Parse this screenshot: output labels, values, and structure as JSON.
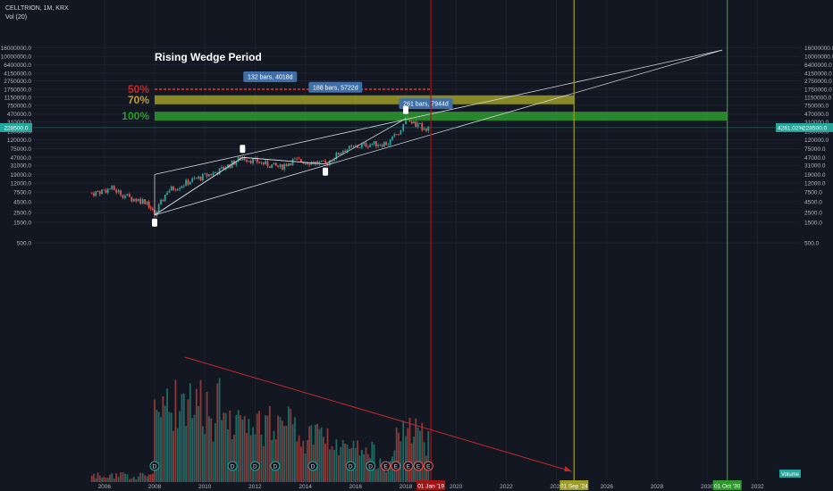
{
  "header": {
    "symbol_line": "CELLTRION, 1M, KRX",
    "vol_line": "Vol (20)"
  },
  "annotations": {
    "pattern_title": "Rising Wedge Period",
    "level_50": "50%",
    "level_70": "70%",
    "level_100": "100%",
    "measure_50": "132 bars, 4018d",
    "measure_70": "188 bars, 5722d",
    "measure_100": "261 bars, 7944d",
    "marker_2019": "01 Jan '19",
    "marker_2024": "01 Sep '24",
    "marker_2030": "01 Oct '30",
    "last_price": "228500.0",
    "change_pct": "4281.02%",
    "volume_label": "Volume",
    "dividend_letter": "D",
    "earnings_letter": "E"
  },
  "colors": {
    "background": "#131722",
    "up": "#26a69a",
    "down": "#ef5350",
    "up_volume": "#1f6b64",
    "down_volume": "#8c3a39",
    "level_50": "#c62828",
    "level_70": "#9e9d24",
    "level_100": "#2e9a2e",
    "marker_2019": "#a31515",
    "marker_2024": "#9e9d24",
    "marker_2030": "#2e9a2e",
    "measure_box": "#3f6fa8",
    "price_tag": "#26a69a"
  },
  "chart_data": {
    "type": "candlestick",
    "title": "CELLTRION, 1M, KRX",
    "price_scale": "log",
    "y_ticks": [
      "16000000.0",
      "10000000.0",
      "6400000.0",
      "4150000.0",
      "2750000.0",
      "1750000.0",
      "1150000.0",
      "750000.0",
      "470000.0",
      "310000.0",
      "190000.0",
      "120000.0",
      "75000.0",
      "47000.0",
      "31000.0",
      "19000.0",
      "12000.0",
      "7500.0",
      "4500.0",
      "2500.0",
      "1500.0",
      "500.0"
    ],
    "x_ticks": [
      "2006",
      "2008",
      "2010",
      "2012",
      "2014",
      "2016",
      "2018",
      "2020",
      "2022",
      "2024",
      "2026",
      "2028",
      "2030",
      "2032"
    ],
    "last_price": 228500,
    "change_pct": 4281.02,
    "price_path": [
      {
        "x": 2005.5,
        "close": 7000
      },
      {
        "x": 2006.3,
        "close": 9000
      },
      {
        "x": 2007.0,
        "close": 5500
      },
      {
        "x": 2007.7,
        "close": 4500
      },
      {
        "x": 2008.0,
        "close": 2200
      },
      {
        "x": 2008.5,
        "close": 8000
      },
      {
        "x": 2009.5,
        "close": 14000
      },
      {
        "x": 2010.5,
        "close": 22000
      },
      {
        "x": 2011.5,
        "close": 47000
      },
      {
        "x": 2012.5,
        "close": 32000
      },
      {
        "x": 2013.0,
        "close": 28000
      },
      {
        "x": 2013.5,
        "close": 40000
      },
      {
        "x": 2014.0,
        "close": 38000
      },
      {
        "x": 2014.8,
        "close": 33000
      },
      {
        "x": 2015.5,
        "close": 70000
      },
      {
        "x": 2016.5,
        "close": 95000
      },
      {
        "x": 2017.3,
        "close": 100000
      },
      {
        "x": 2017.8,
        "close": 200000
      },
      {
        "x": 2018.0,
        "close": 370000
      },
      {
        "x": 2018.4,
        "close": 260000
      },
      {
        "x": 2018.9,
        "close": 228500
      }
    ],
    "volume_peak_year": 2009.2,
    "levels": [
      {
        "label": "50%",
        "price": 1750000,
        "x_start": 2008,
        "x_end": 2019
      },
      {
        "label": "70%",
        "price": 1000000,
        "x_start": 2008,
        "x_end": 2024.7
      },
      {
        "label": "100%",
        "price": 420000,
        "x_start": 2008,
        "x_end": 2030.8
      }
    ],
    "vertical_markers": [
      {
        "label": "01 Jan '19",
        "x": 2019.0
      },
      {
        "label": "01 Sep '24",
        "x": 2024.7
      },
      {
        "label": "01 Oct '30",
        "x": 2030.8
      }
    ]
  }
}
